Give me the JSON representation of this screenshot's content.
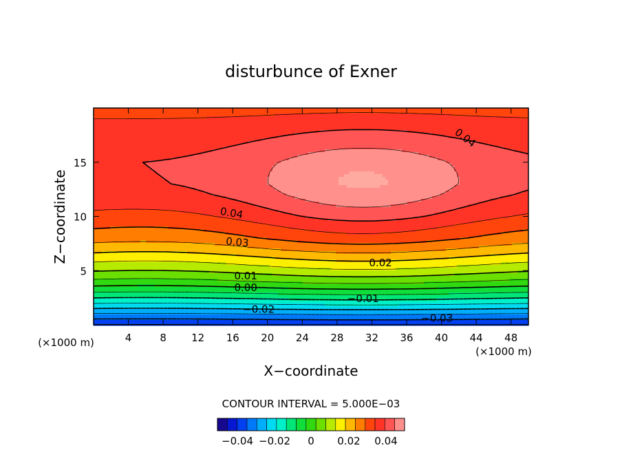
{
  "chart_data": {
    "type": "heatmap",
    "title": "disturbunce of Exner",
    "xlabel": "X−coordinate",
    "ylabel": "Z−coordinate",
    "x_unit": "(×1000 m)",
    "y_unit": "(×1000 m)",
    "xlim": [
      0,
      50
    ],
    "ylim": [
      0,
      20
    ],
    "x_ticks": [
      4,
      8,
      12,
      16,
      20,
      24,
      28,
      32,
      36,
      40,
      44,
      48
    ],
    "y_ticks": [
      5,
      10,
      15
    ],
    "field_range": [
      -0.045,
      0.05
    ],
    "field_model": {
      "center_x": 31,
      "center_z": 13.4,
      "peak_value": 0.05,
      "profile_z": [
        0,
        1,
        2,
        3,
        4,
        5,
        6,
        7,
        8,
        9,
        10,
        11,
        12,
        13,
        14,
        15,
        16,
        17,
        18,
        19,
        20
      ],
      "profile_value": [
        -0.035,
        -0.025,
        -0.014,
        -0.004,
        0.005,
        0.012,
        0.018,
        0.024,
        0.029,
        0.032,
        0.035,
        0.037,
        0.039,
        0.04,
        0.04,
        0.04,
        0.039,
        0.038,
        0.037,
        0.035,
        0.033
      ]
    },
    "contour_interval_text": "CONTOUR INTERVAL = 5.000E−03",
    "contour_interval": 0.005,
    "contour_labels": [
      {
        "text": "0.04",
        "x": 42.5,
        "z": 17.0,
        "angle": 38
      },
      {
        "text": "0.04",
        "x": 15.8,
        "z": 10.0,
        "angle": 10
      },
      {
        "text": "0.03",
        "x": 16.5,
        "z": 7.3,
        "angle": 5
      },
      {
        "text": "0.02",
        "x": 33.0,
        "z": 5.4,
        "angle": 0
      },
      {
        "text": "0.01",
        "x": 17.5,
        "z": 4.2,
        "angle": 0
      },
      {
        "text": "0.00",
        "x": 17.5,
        "z": 3.1,
        "angle": 0
      },
      {
        "text": "−0.01",
        "x": 31.0,
        "z": 2.1,
        "angle": 0
      },
      {
        "text": "−0.02",
        "x": 19.0,
        "z": 1.1,
        "angle": 0
      },
      {
        "text": "−0.03",
        "x": 39.5,
        "z": 0.3,
        "angle": 0
      }
    ],
    "colorbar": {
      "tick_labels": [
        "−0.04",
        "−0.02",
        "0",
        "0.02",
        "0.04"
      ],
      "tick_values": [
        -0.04,
        -0.02,
        0,
        0.02,
        0.04
      ]
    }
  }
}
